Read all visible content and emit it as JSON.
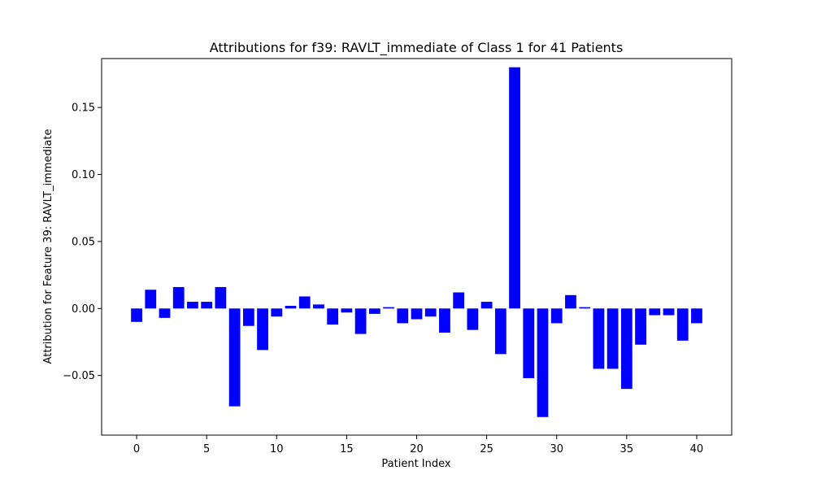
{
  "chart_data": {
    "type": "bar",
    "title": "Attributions for f39: RAVLT_immediate of Class 1 for 41 Patients",
    "xlabel": "Patient Index",
    "ylabel": "Attribution for Feature 39: RAVLT_immediate",
    "bar_color": "#0000ff",
    "grid": false,
    "xlim": [
      -2.5,
      42.5
    ],
    "ylim": [
      -0.0945,
      0.1865
    ],
    "x_ticks": [
      0,
      5,
      10,
      15,
      20,
      25,
      30,
      35,
      40
    ],
    "x_tick_labels": [
      "0",
      "5",
      "10",
      "15",
      "20",
      "25",
      "30",
      "35",
      "40"
    ],
    "y_ticks": [
      -0.05,
      0.0,
      0.05,
      0.1,
      0.15
    ],
    "y_tick_labels": [
      "−0.05",
      "0.00",
      "0.05",
      "0.10",
      "0.15"
    ],
    "x": [
      0,
      1,
      2,
      3,
      4,
      5,
      6,
      7,
      8,
      9,
      10,
      11,
      12,
      13,
      14,
      15,
      16,
      17,
      18,
      19,
      20,
      21,
      22,
      23,
      24,
      25,
      26,
      27,
      28,
      29,
      30,
      31,
      32,
      33,
      34,
      35,
      36,
      37,
      38,
      39,
      40
    ],
    "values": [
      -0.01,
      0.014,
      -0.007,
      0.016,
      0.005,
      0.005,
      0.016,
      -0.073,
      -0.013,
      -0.031,
      -0.006,
      0.002,
      0.009,
      0.003,
      -0.012,
      -0.003,
      -0.019,
      -0.004,
      0.001,
      -0.011,
      -0.008,
      -0.006,
      -0.018,
      0.012,
      -0.016,
      0.005,
      -0.034,
      0.18,
      -0.052,
      -0.081,
      -0.011,
      0.01,
      0.001,
      -0.045,
      -0.045,
      -0.06,
      -0.027,
      -0.005,
      -0.005,
      -0.024,
      -0.011
    ]
  }
}
